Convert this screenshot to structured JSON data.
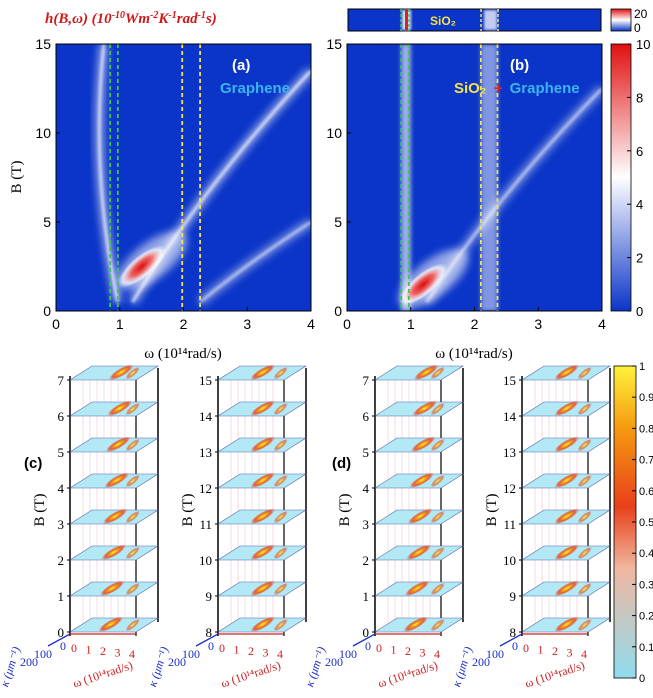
{
  "chart_data": [
    {
      "panel": "(a)",
      "type": "heatmap",
      "title": "h(B,ω) (10⁻¹⁰Wm⁻²K⁻¹rad⁻¹s)",
      "xlabel": "ω (10¹⁴rad/s)",
      "ylabel": "B (T)",
      "xlim": [
        0,
        4
      ],
      "ylim": [
        0,
        15
      ],
      "xticks": [
        "0",
        "1",
        "2",
        "3",
        "4"
      ],
      "yticks": [
        "0",
        "5",
        "10",
        "15"
      ],
      "annotation": "Graphene",
      "dashed_lines": [
        {
          "x": 0.85,
          "color": "#3ec84a"
        },
        {
          "x": 0.97,
          "color": "#3ec84a"
        },
        {
          "x": 1.98,
          "color": "#f2e34a"
        },
        {
          "x": 2.26,
          "color": "#f2e34a"
        }
      ],
      "features": [
        {
          "kind": "branch",
          "from": [
            0.97,
            0.5
          ],
          "to": [
            0.75,
            15
          ],
          "peak": 5
        },
        {
          "kind": "hot spot",
          "at": [
            1.35,
            2.5
          ],
          "peak": 10
        },
        {
          "kind": "branch",
          "from": [
            1.2,
            0.5
          ],
          "to": [
            4.0,
            13.5
          ],
          "peak": 5
        },
        {
          "kind": "branch",
          "from": [
            2.26,
            0.5
          ],
          "to": [
            4.0,
            5.0
          ],
          "peak": 4
        }
      ]
    },
    {
      "panel": "(b)",
      "type": "heatmap",
      "xlabel": "ω (10¹⁴rad/s)",
      "xlim": [
        0,
        4
      ],
      "ylim": [
        0,
        15
      ],
      "xticks": [
        "0",
        "1",
        "2",
        "3",
        "4"
      ],
      "yticks": [
        "0",
        "5",
        "10",
        "15"
      ],
      "annotation": [
        "SiO₂",
        "+",
        "Graphene"
      ],
      "inset_label": "SiO₂",
      "inset_colorbar": {
        "ticks": [
          "20",
          "0"
        ]
      },
      "dashed_lines": [
        {
          "x": 0.85,
          "color": "#3ec84a"
        },
        {
          "x": 0.97,
          "color": "#3ec84a"
        },
        {
          "x": 2.1,
          "color": "#f2e34a"
        },
        {
          "x": 2.36,
          "color": "#f2e34a"
        }
      ],
      "features": [
        {
          "kind": "band",
          "x": [
            0.85,
            1.0
          ],
          "peak": 5
        },
        {
          "kind": "band",
          "x": [
            2.1,
            2.36
          ],
          "peak": 4
        },
        {
          "kind": "hot spot",
          "at": [
            1.2,
            1.5
          ],
          "peak": 9
        },
        {
          "kind": "branch",
          "from": [
            1.25,
            0.5
          ],
          "to": [
            4.0,
            12.5
          ],
          "peak": 4
        }
      ],
      "colorbar": {
        "range": [
          0,
          10
        ],
        "ticks": [
          "0",
          "2",
          "4",
          "6",
          "8",
          "10"
        ]
      }
    },
    {
      "panel": "(c)",
      "type": "heatmap",
      "layout": "stacked 3D slices",
      "slices_left": [
        "0",
        "1",
        "2",
        "3",
        "4",
        "5",
        "6",
        "7"
      ],
      "slices_right": [
        "8",
        "9",
        "10",
        "11",
        "12",
        "13",
        "14",
        "15"
      ],
      "ylabel": "B (T)",
      "xlabel": "ω (10¹⁴rad/s)",
      "depth_label": "κ (μm⁻¹)",
      "omega_ticks": [
        "0",
        "1",
        "2",
        "3",
        "4"
      ],
      "kappa_ticks": [
        "0",
        "100",
        "200"
      ]
    },
    {
      "panel": "(d)",
      "type": "heatmap",
      "layout": "stacked 3D slices",
      "slices_left": [
        "0",
        "1",
        "2",
        "3",
        "4",
        "5",
        "6",
        "7"
      ],
      "slices_right": [
        "8",
        "9",
        "10",
        "11",
        "12",
        "13",
        "14",
        "15"
      ],
      "ylabel": "B (T)",
      "xlabel": "ω (10¹⁴rad/s)",
      "depth_label": "κ (μm⁻¹)",
      "omega_ticks": [
        "0",
        "1",
        "2",
        "3",
        "4"
      ],
      "kappa_ticks": [
        "0",
        "100",
        "200"
      ],
      "colorbar": {
        "range": [
          0,
          1
        ],
        "ticks": [
          "0",
          "0.1",
          "0.2",
          "0.3",
          "0.4",
          "0.5",
          "0.6",
          "0.7",
          "0.8",
          "0.9",
          "1"
        ]
      }
    }
  ],
  "colors": {
    "heat_low": "#0b35c8",
    "heat_mid": "#ffffff",
    "heat_high": "#e01010",
    "slice_low": "#b3e8f5",
    "slice_mid": "#f08010",
    "slice_high": "#ffee33",
    "frame_left": "#1a1a80",
    "axis_omega": "#d02020",
    "axis_kappa": "#1c2cc8",
    "annotation_graphene": "#39b4f0",
    "annotation_sio2": "#f2e34a",
    "title_red": "#d01818"
  }
}
